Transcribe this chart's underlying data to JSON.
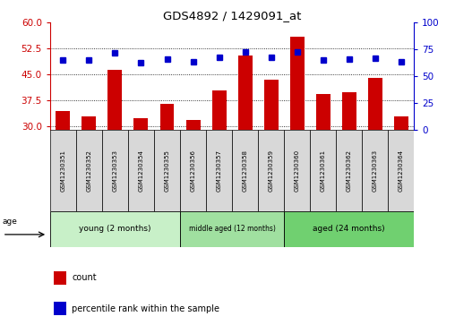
{
  "title": "GDS4892 / 1429091_at",
  "samples": [
    "GSM1230351",
    "GSM1230352",
    "GSM1230353",
    "GSM1230354",
    "GSM1230355",
    "GSM1230356",
    "GSM1230357",
    "GSM1230358",
    "GSM1230359",
    "GSM1230360",
    "GSM1230361",
    "GSM1230362",
    "GSM1230363",
    "GSM1230364"
  ],
  "count_values": [
    34.5,
    33.0,
    46.5,
    32.5,
    36.5,
    32.0,
    40.5,
    50.5,
    43.5,
    56.0,
    39.5,
    40.0,
    44.0,
    33.0
  ],
  "percentile_values": [
    65,
    65,
    72,
    63,
    66,
    64,
    68,
    73,
    68,
    73,
    65,
    66,
    67,
    64
  ],
  "ylim_left": [
    29,
    60
  ],
  "ylim_right": [
    0,
    100
  ],
  "yticks_left": [
    30,
    37.5,
    45,
    52.5,
    60
  ],
  "yticks_right": [
    0,
    25,
    50,
    75,
    100
  ],
  "bar_color": "#cc0000",
  "dot_color": "#0000cc",
  "groups": [
    {
      "label": "young (2 months)",
      "start": 0,
      "end": 5
    },
    {
      "label": "middle aged (12 months)",
      "start": 5,
      "end": 9
    },
    {
      "label": "aged (24 months)",
      "start": 9,
      "end": 14
    }
  ],
  "group_colors": [
    "#c8f0c8",
    "#a0e0a0",
    "#70d070"
  ],
  "tick_label_color_left": "#cc0000",
  "tick_label_color_right": "#0000cc",
  "bar_bottom": 29,
  "count_label": "count",
  "percentile_label": "percentile rank within the sample",
  "age_label": "age"
}
